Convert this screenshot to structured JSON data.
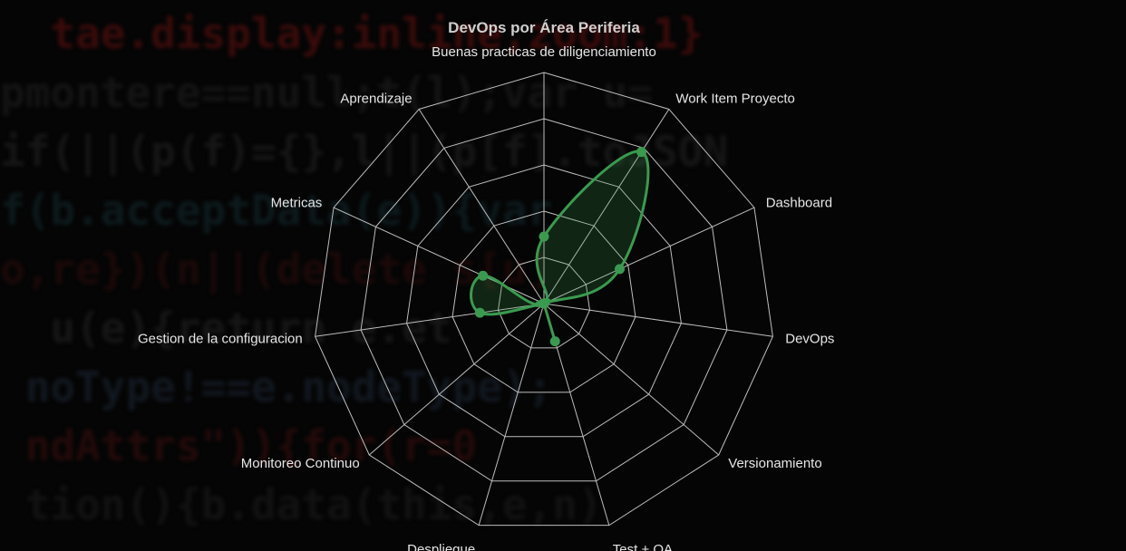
{
  "chart_data": {
    "type": "radar",
    "title": "DevOps por Área Periferia",
    "axes": [
      "Buenas practicas de diligenciamiento",
      "Work Item Proyecto",
      "Dashboard",
      "DevOps",
      "Versionamiento",
      "Test + QA",
      "Despliegue",
      "Monitoreo Continuo",
      "Gestion de la configuracion",
      "Metricas",
      "Aprendizaje"
    ],
    "series": [
      {
        "values": [
          2.9,
          7.8,
          3.6,
          0,
          0,
          1.7,
          0,
          0,
          2.8,
          2.9,
          0
        ]
      }
    ],
    "rlim": [
      0,
      10
    ],
    "grid": true,
    "series_color": "#3a9a4f",
    "grid_color": "#bdbdbd"
  }
}
